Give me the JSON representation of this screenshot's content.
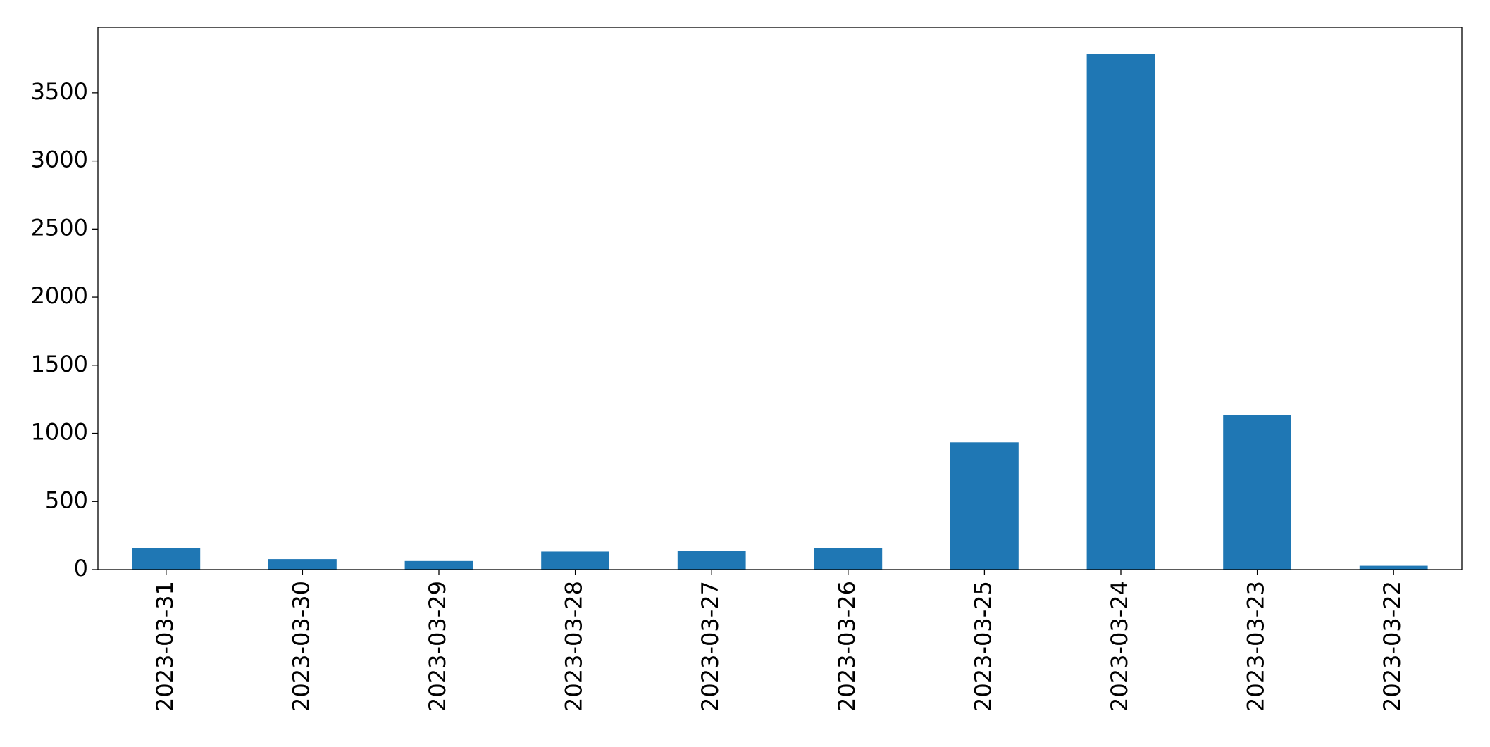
{
  "chart_data": {
    "type": "bar",
    "categories": [
      "2023-03-31",
      "2023-03-30",
      "2023-03-29",
      "2023-03-28",
      "2023-03-27",
      "2023-03-26",
      "2023-03-25",
      "2023-03-24",
      "2023-03-23",
      "2023-03-22"
    ],
    "values": [
      160,
      77,
      63,
      132,
      139,
      160,
      934,
      3787,
      1137,
      28
    ],
    "color": "#1f77b4",
    "ylim": [
      0,
      3980
    ],
    "yticks": [
      0,
      500,
      1000,
      1500,
      2000,
      2500,
      3000,
      3500
    ],
    "grid": false
  }
}
